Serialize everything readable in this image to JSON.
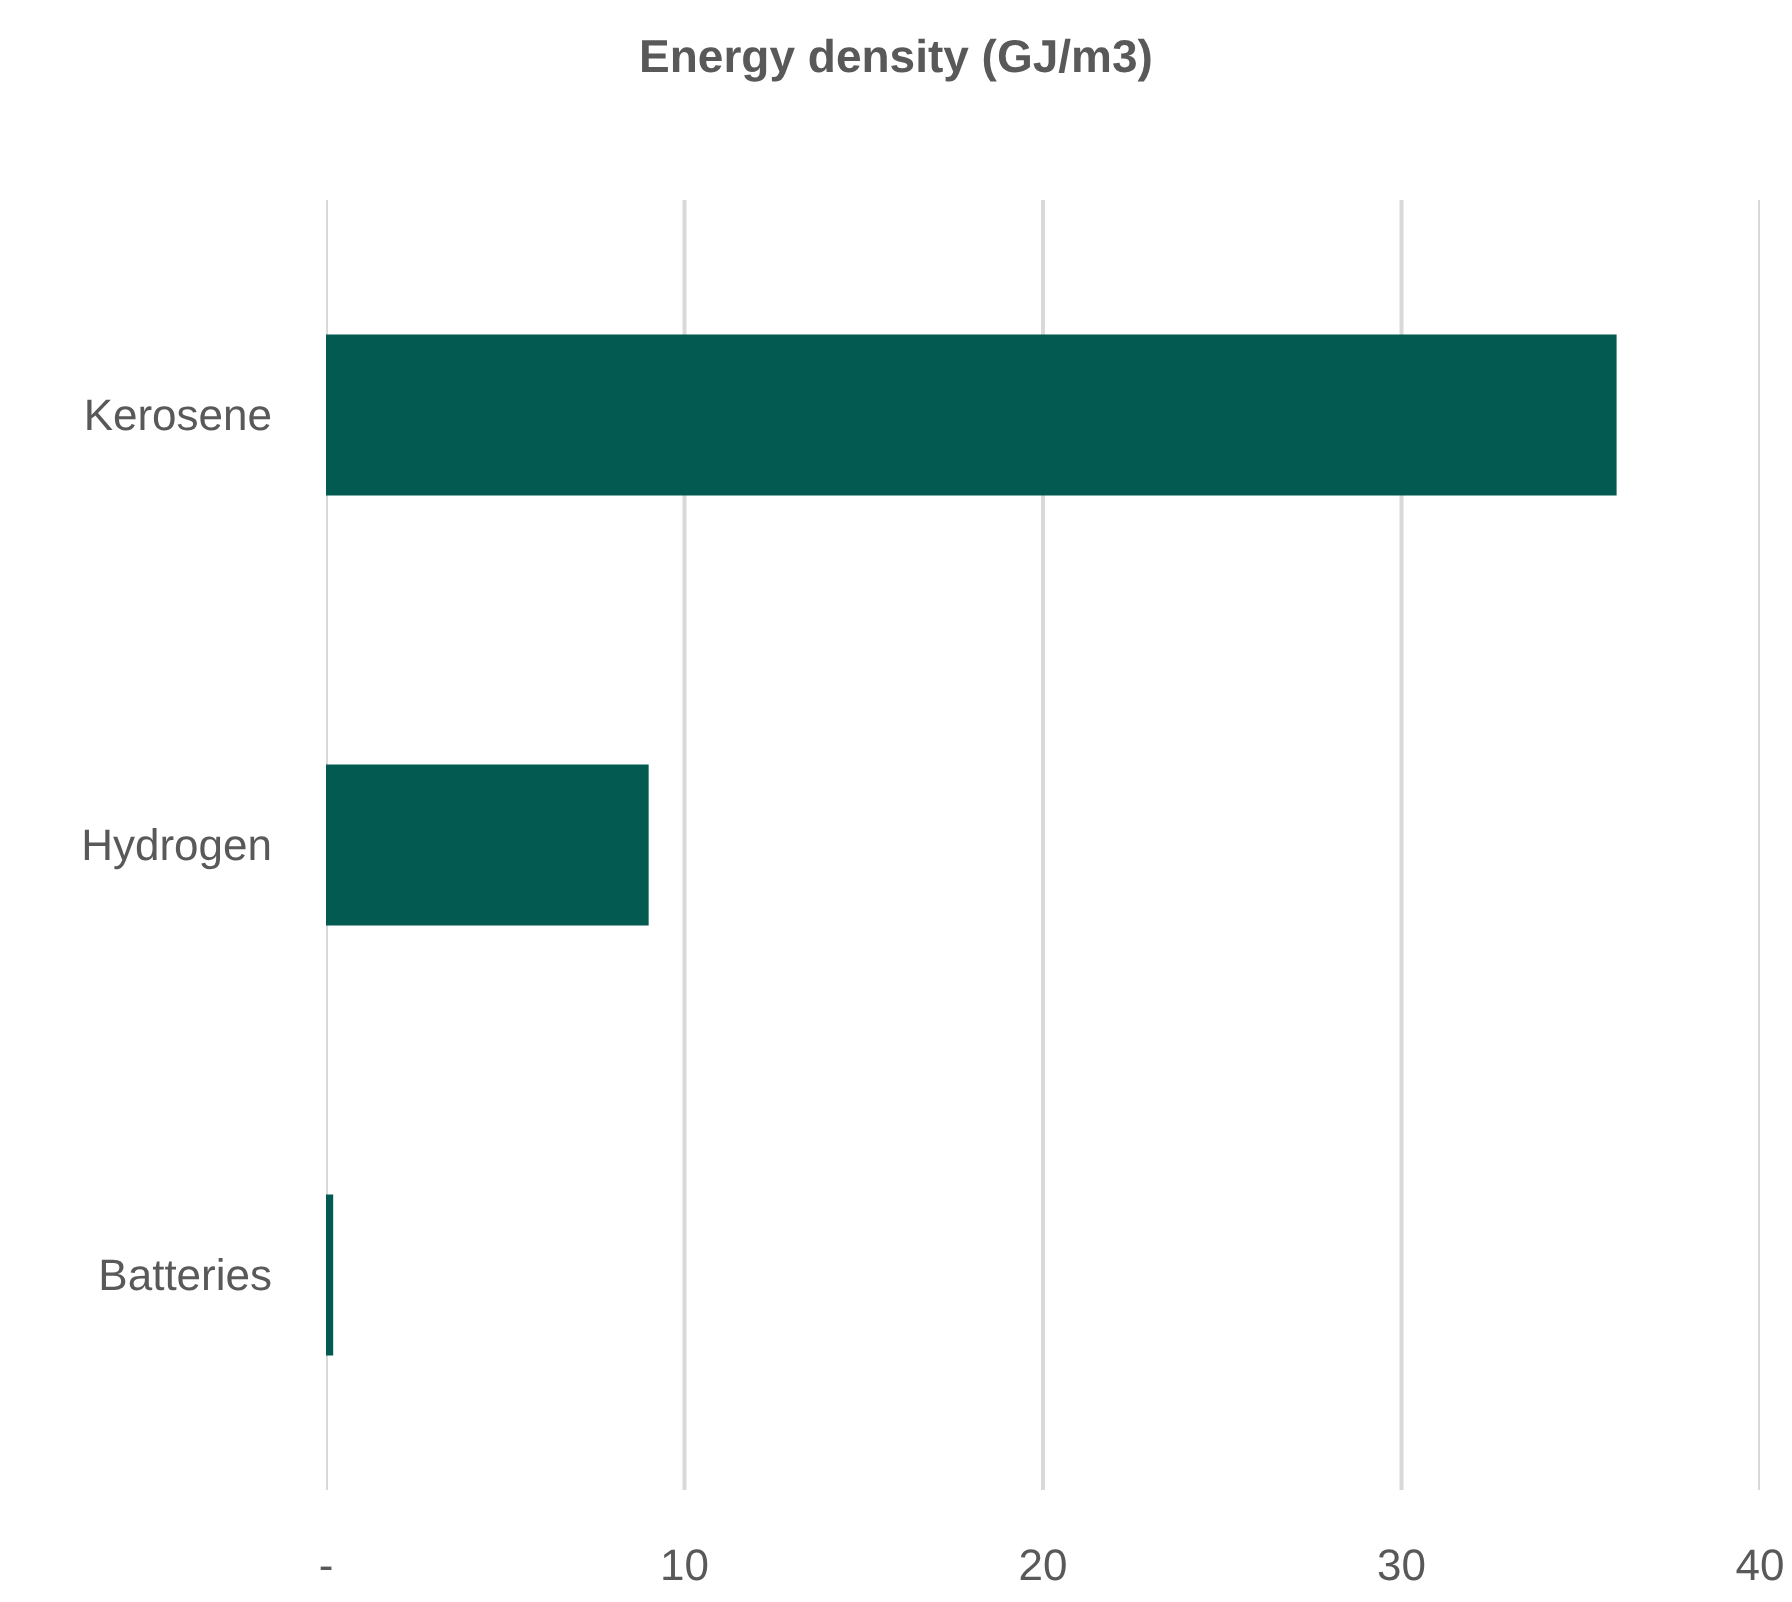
{
  "chart_data": {
    "type": "bar",
    "orientation": "horizontal",
    "title": "Energy density (GJ/m3)",
    "categories": [
      "Kerosene",
      "Hydrogen",
      "Batteries"
    ],
    "values": [
      36,
      9,
      0.2
    ],
    "color": "#035a50",
    "xlim": [
      0,
      40
    ],
    "xticks": [
      {
        "value": 0,
        "label": "-"
      },
      10,
      20,
      30,
      40
    ],
    "grid": "x"
  }
}
